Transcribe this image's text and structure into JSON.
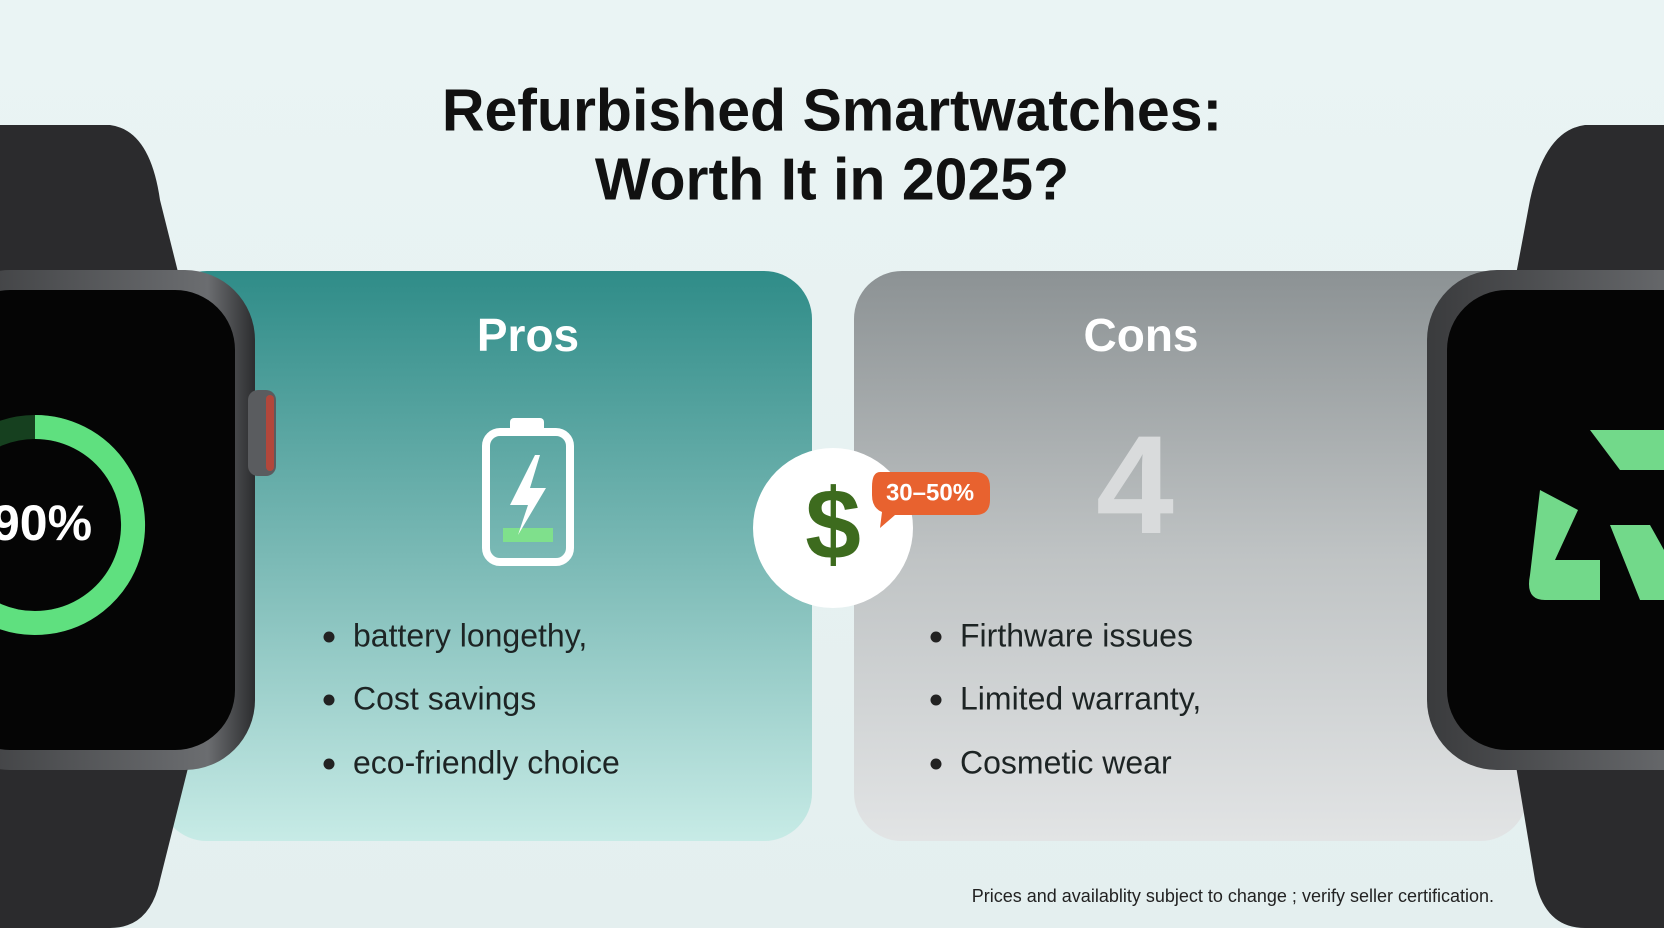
{
  "title_lines": [
    "Refurbished Smartwatches:",
    "Worth It in 2025?"
  ],
  "pros": {
    "heading": "Pros",
    "items": [
      "battery longethy,",
      "Cost savings",
      "eco-friendly choice"
    ]
  },
  "cons": {
    "heading": "Cons",
    "items": [
      "Firthware issues",
      "Limited warranty,",
      "Cosmetic wear"
    ]
  },
  "badge": {
    "symbol": "$",
    "label": "30–50%"
  },
  "cons_number": "4",
  "watch_display": "90%",
  "footnote": "Prices and availablity subject to change ; verify seller certification."
}
